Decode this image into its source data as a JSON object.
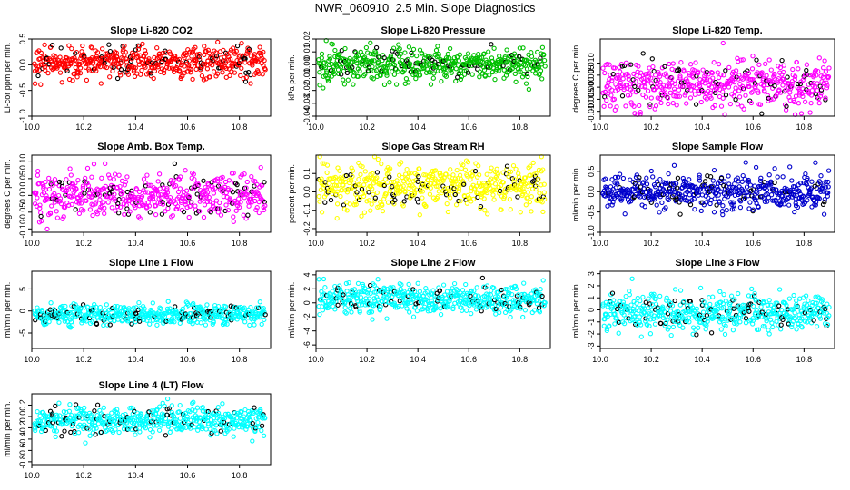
{
  "page": {
    "title": "NWR_060910  2.5 Min. Slope Diagnostics"
  },
  "chart_data": [
    {
      "type": "scatter",
      "title": "Slope Li-820 CO2",
      "ylabel": "Li-cor ppm per min.",
      "xlim": [
        10.0,
        10.92
      ],
      "ylim": [
        -1.0,
        0.5
      ],
      "x_ticks": [
        "10.0",
        "10.2",
        "10.4",
        "10.6",
        "10.8"
      ],
      "y_ticks": [
        "-1.0",
        "-0.5",
        "0.0",
        "0.5"
      ],
      "color": "#ff0000",
      "spread": 0.16,
      "mean": 0.05
    },
    {
      "type": "scatter",
      "title": "Slope Li-820 Pressure",
      "ylabel": "kPa per min.",
      "xlim": [
        10.0,
        10.92
      ],
      "ylim": [
        -0.04,
        0.02
      ],
      "x_ticks": [
        "10.0",
        "10.2",
        "10.4",
        "10.6",
        "10.8"
      ],
      "y_ticks": [
        "-0.04",
        "-0.03",
        "-0.02",
        "-0.01",
        "0.00",
        "0.01",
        "0.02"
      ],
      "color": "#00c000",
      "spread": 0.006,
      "mean": 0.0
    },
    {
      "type": "scatter",
      "title": "Slope Li-820 Temp.",
      "ylabel": "degrees C per min.",
      "xlim": [
        10.0,
        10.92
      ],
      "ylim": [
        -0.012,
        0.02
      ],
      "x_ticks": [
        "10.0",
        "10.2",
        "10.4",
        "10.6",
        "10.8"
      ],
      "y_ticks": [
        "-0.010",
        "-0.005",
        "0.000",
        "0.005",
        "0.010"
      ],
      "color": "#ff00ff",
      "spread": 0.005,
      "mean": 0.001
    },
    {
      "type": "scatter",
      "title": "Slope Amb. Box Temp.",
      "ylabel": "degrees C per min.",
      "xlim": [
        10.0,
        10.92
      ],
      "ylim": [
        -0.11,
        0.12
      ],
      "x_ticks": [
        "10.0",
        "10.2",
        "10.4",
        "10.6",
        "10.8"
      ],
      "y_ticks": [
        "-0.10",
        "-0.05",
        "0.00",
        "0.05",
        "0.10"
      ],
      "color": "#ff00ff",
      "spread": 0.035,
      "mean": 0.0
    },
    {
      "type": "scatter",
      "title": "Slope Gas Stream RH",
      "ylabel": "percent per min.",
      "xlim": [
        10.0,
        10.92
      ],
      "ylim": [
        -0.22,
        0.2
      ],
      "x_ticks": [
        "10.0",
        "10.2",
        "10.4",
        "10.6",
        "10.8"
      ],
      "y_ticks": [
        "-0.2",
        "-0.1",
        "0.0",
        "0.1"
      ],
      "color": "#ffff00",
      "spread": 0.06,
      "mean": 0.03
    },
    {
      "type": "scatter",
      "title": "Slope Sample Flow",
      "ylabel": "ml/min per min.",
      "xlim": [
        10.0,
        10.92
      ],
      "ylim": [
        -1.0,
        0.9
      ],
      "x_ticks": [
        "10.0",
        "10.2",
        "10.4",
        "10.6",
        "10.8"
      ],
      "y_ticks": [
        "-1.0",
        "-0.5",
        "0.0",
        "0.5"
      ],
      "color": "#0000cc",
      "spread": 0.22,
      "mean": 0.0
    },
    {
      "type": "scatter",
      "title": "Slope Line 1 Flow",
      "ylabel": "ml/min per min.",
      "xlim": [
        10.0,
        10.92
      ],
      "ylim": [
        -8.5,
        9.0
      ],
      "x_ticks": [
        "10.0",
        "10.2",
        "10.4",
        "10.6",
        "10.8"
      ],
      "y_ticks": [
        "-5",
        "0",
        "5"
      ],
      "color": "#00ffff",
      "spread": 1.2,
      "mean": -0.8
    },
    {
      "type": "scatter",
      "title": "Slope Line 2 Flow",
      "ylabel": "ml/min per min.",
      "xlim": [
        10.0,
        10.92
      ],
      "ylim": [
        -6.5,
        4.5
      ],
      "x_ticks": [
        "10.0",
        "10.2",
        "10.4",
        "10.6",
        "10.8"
      ],
      "y_ticks": [
        "-6",
        "-4",
        "-2",
        "0",
        "2",
        "4"
      ],
      "color": "#00ffff",
      "spread": 1.1,
      "mean": 0.6
    },
    {
      "type": "scatter",
      "title": "Slope Line 3 Flow",
      "ylabel": "ml/min per min.",
      "xlim": [
        10.0,
        10.92
      ],
      "ylim": [
        -3.2,
        3.2
      ],
      "x_ticks": [
        "10.0",
        "10.2",
        "10.4",
        "10.6",
        "10.8"
      ],
      "y_ticks": [
        "-3",
        "-2",
        "-1",
        "0",
        "1",
        "2",
        "3"
      ],
      "color": "#00ffff",
      "spread": 0.75,
      "mean": -0.2
    },
    {
      "type": "scatter",
      "title": "Slope Line 4 (LT) Flow",
      "ylabel": "ml/min per min.",
      "xlim": [
        10.0,
        10.92
      ],
      "ylim": [
        -0.85,
        0.4
      ],
      "x_ticks": [
        "10.0",
        "10.2",
        "10.4",
        "10.6",
        "10.8"
      ],
      "y_ticks": [
        "-0.8",
        "-0.6",
        "-0.4",
        "-0.2",
        "0.0",
        "0.2"
      ],
      "color": "#00ffff",
      "spread": 0.13,
      "mean": -0.08
    }
  ]
}
